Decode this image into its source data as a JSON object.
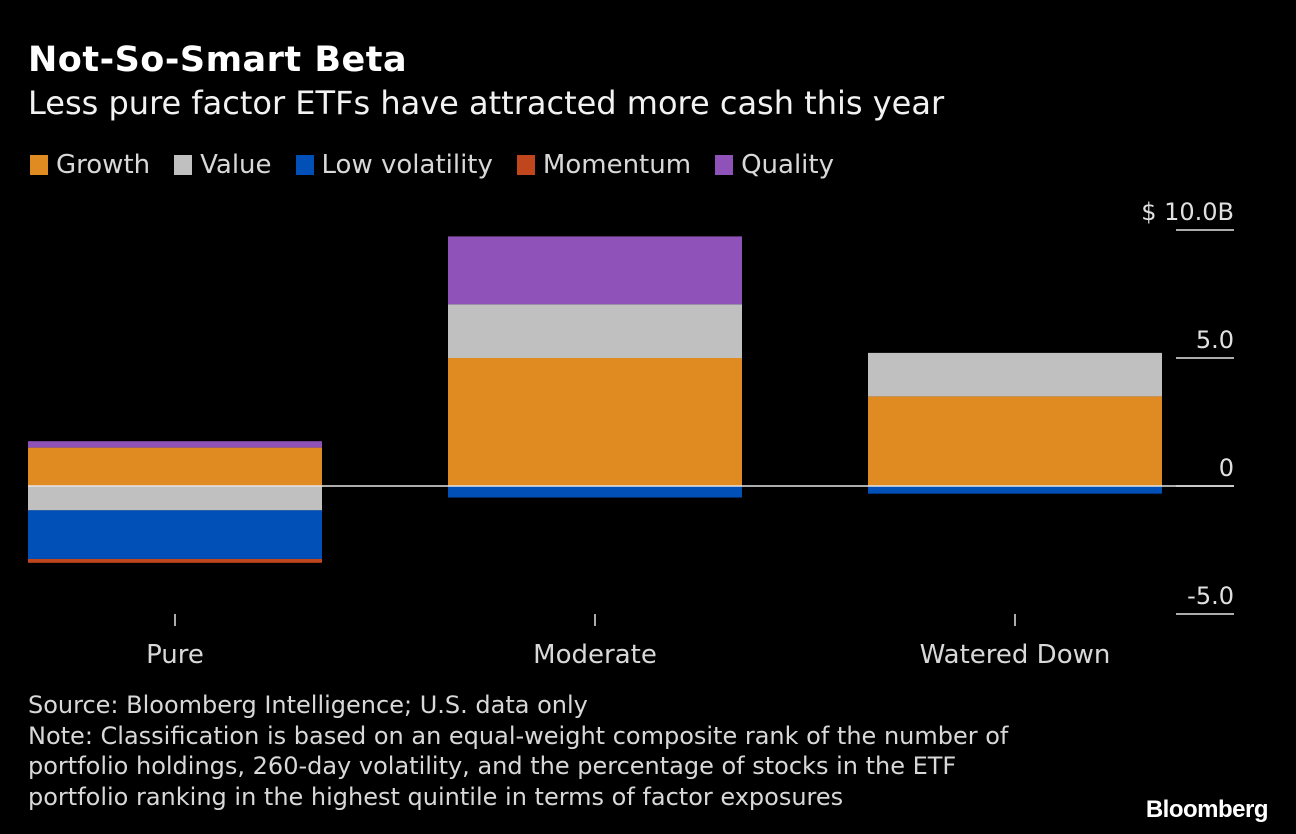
{
  "header": {
    "title": "Not-So-Smart Beta",
    "subtitle": "Less pure factor ETFs have attracted more cash this year"
  },
  "footer": {
    "source": "Source: Bloomberg Intelligence; U.S. data only",
    "note_lines": [
      "Note: Classification is based on an equal-weight composite rank of the number of",
      "portfolio holdings, 260-day volatility, and the percentage of stocks in the ETF",
      "portfolio ranking in the highest quintile in terms of factor exposures"
    ],
    "brand": "Bloomberg"
  },
  "chart_data": {
    "type": "bar",
    "stacked": true,
    "title": "Not-So-Smart Beta",
    "subtitle": "Less pure factor ETFs have attracted more cash this year",
    "xlabel": "",
    "ylabel": "",
    "categories": [
      "Pure",
      "Moderate",
      "Watered Down"
    ],
    "series": [
      {
        "name": "Growth",
        "color": "#e08a22",
        "values": [
          1.5,
          5.0,
          3.5
        ]
      },
      {
        "name": "Value",
        "color": "#c0c0c0",
        "values": [
          -0.95,
          2.1,
          1.7
        ]
      },
      {
        "name": "Low volatility",
        "color": "#0050b8",
        "values": [
          -1.9,
          -0.45,
          -0.3
        ]
      },
      {
        "name": "Momentum",
        "color": "#c0461e",
        "values": [
          -0.15,
          0,
          0
        ]
      },
      {
        "name": "Quality",
        "color": "#8f52b8",
        "values": [
          0.25,
          2.65,
          0
        ]
      }
    ],
    "ylim": [
      -5.0,
      10.0
    ],
    "yticks": [
      {
        "value": 10.0,
        "label": "$ 10.0B"
      },
      {
        "value": 5.0,
        "label": "5.0"
      },
      {
        "value": 0,
        "label": "0"
      },
      {
        "value": -5.0,
        "label": "-5.0"
      }
    ],
    "units": "USD billions",
    "axis_position": "right",
    "legend_position": "top-left",
    "grid": false
  }
}
